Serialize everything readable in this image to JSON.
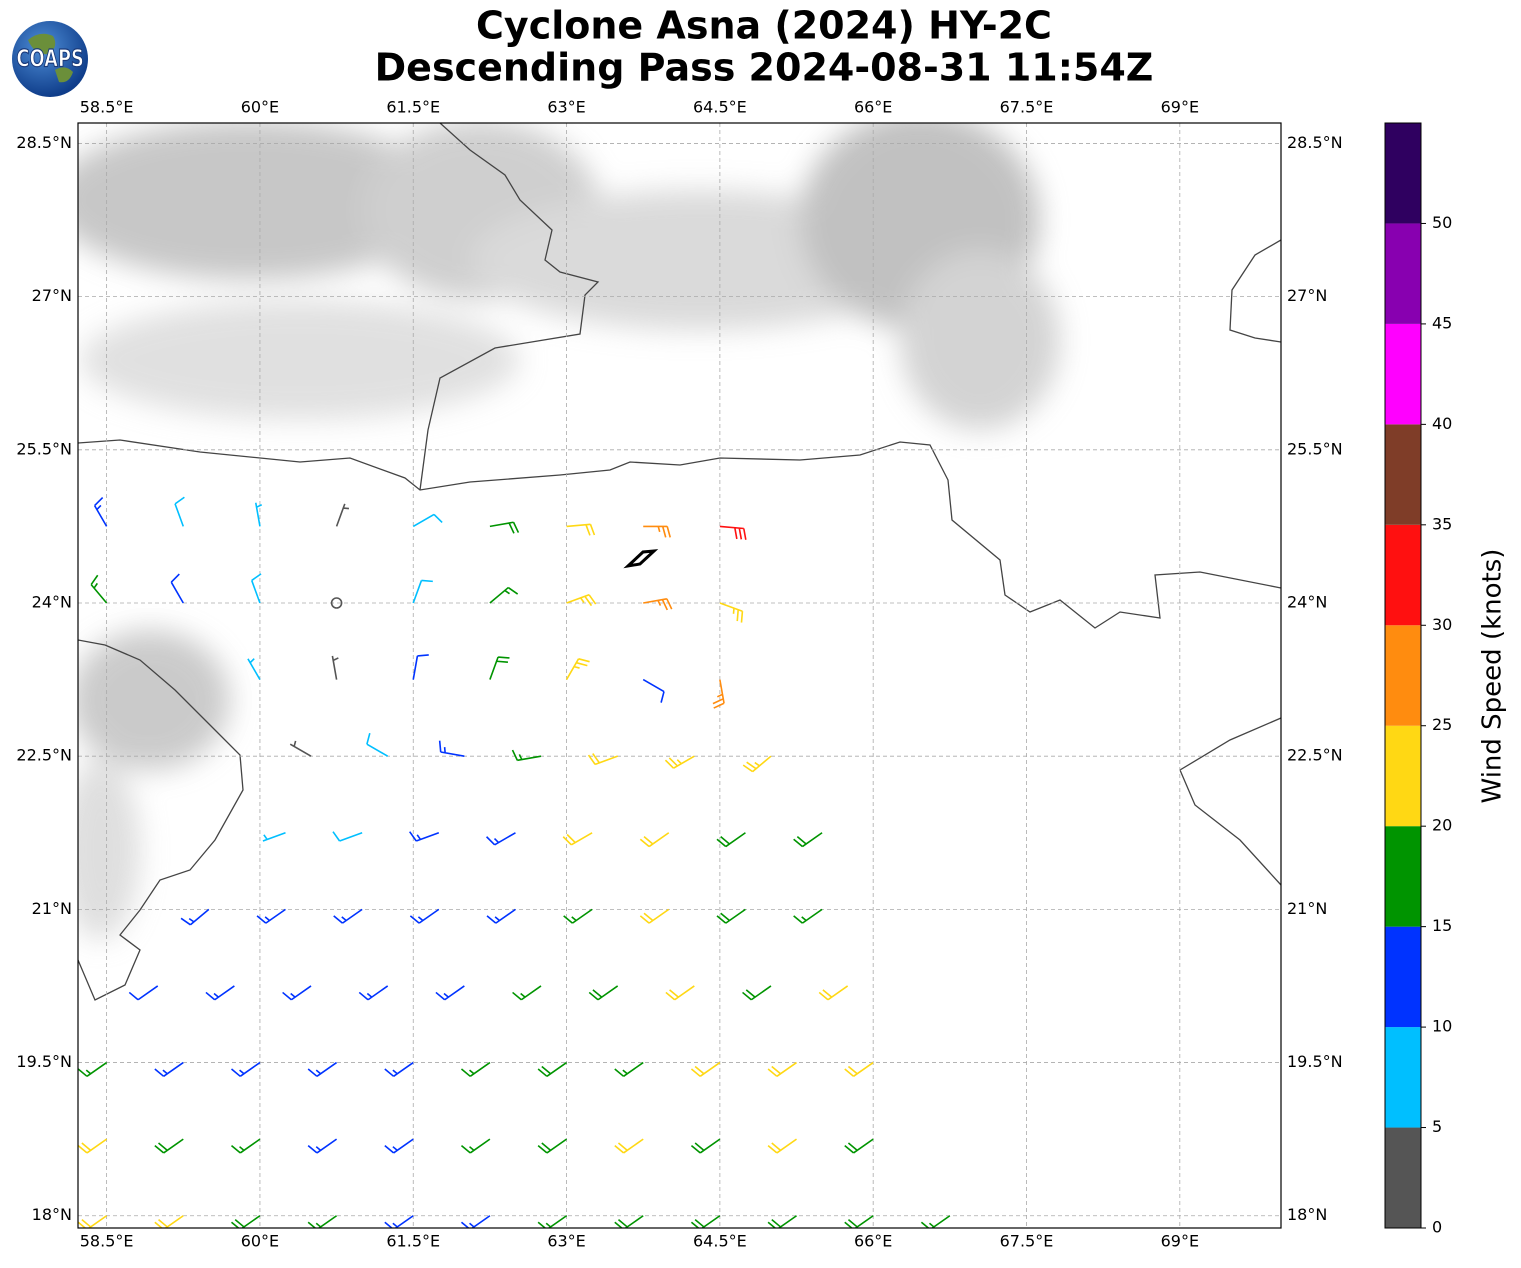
{
  "map": {
    "title": "Cyclone Asna (2024) HY-2C",
    "subtitle": "Descending Pass 2024-08-31 11:54Z",
    "logo": "COAPS",
    "xlim": [
      58.22,
      69.99
    ],
    "ylim": [
      17.88,
      28.7
    ],
    "xticks": [
      {
        "value": 58.5,
        "label": "58.5°E"
      },
      {
        "value": 60,
        "label": "60°E"
      },
      {
        "value": 61.5,
        "label": "61.5°E"
      },
      {
        "value": 63,
        "label": "63°E"
      },
      {
        "value": 64.5,
        "label": "64.5°E"
      },
      {
        "value": 66,
        "label": "66°E"
      },
      {
        "value": 67.5,
        "label": "67.5°E"
      },
      {
        "value": 69,
        "label": "69°E"
      }
    ],
    "yticks": [
      {
        "value": 18,
        "label": "18°N"
      },
      {
        "value": 19.5,
        "label": "19.5°N"
      },
      {
        "value": 21,
        "label": "21°N"
      },
      {
        "value": 22.5,
        "label": "22.5°N"
      },
      {
        "value": 24,
        "label": "24°N"
      },
      {
        "value": 25.5,
        "label": "25.5°N"
      },
      {
        "value": 27,
        "label": "27°N"
      },
      {
        "value": 28.5,
        "label": "28.5°N"
      }
    ],
    "grid": true,
    "barb_rows": [
      {
        "lat": 24.75,
        "lon": [
          58.5,
          59.25,
          60.0,
          60.75,
          61.5,
          62.25,
          63.0,
          63.75,
          64.5
        ],
        "speed": [
          13,
          8,
          7,
          3,
          8,
          19,
          22,
          27,
          31
        ],
        "dir": [
          330,
          340,
          350,
          20,
          60,
          80,
          85,
          90,
          95
        ]
      },
      {
        "lat": 24.0,
        "lon": [
          58.5,
          59.25,
          60.0,
          60.75,
          61.5,
          62.25,
          63.0,
          63.75,
          64.5
        ],
        "speed": [
          16,
          12,
          8,
          2,
          9,
          17,
          23,
          27,
          23
        ],
        "dir": [
          320,
          330,
          340,
          0,
          20,
          50,
          70,
          80,
          110
        ]
      },
      {
        "lat": 23.25,
        "lon": [
          60.0,
          60.75,
          61.5,
          62.25,
          63.0,
          63.75,
          64.5
        ],
        "speed": [
          6,
          3,
          12,
          19,
          24,
          12,
          27
        ],
        "dir": [
          330,
          350,
          10,
          20,
          30,
          120,
          170
        ]
      },
      {
        "lat": 22.5,
        "lon": [
          60.5,
          61.25,
          62.0,
          62.75,
          63.5,
          64.25,
          65.0
        ],
        "speed": [
          4,
          9,
          13,
          17,
          21,
          24,
          23
        ],
        "dir": [
          300,
          300,
          280,
          260,
          250,
          240,
          230
        ]
      },
      {
        "lat": 21.75,
        "lon": [
          60.25,
          61.0,
          61.75,
          62.5,
          63.25,
          64.0,
          64.75,
          65.5
        ],
        "speed": [
          5,
          8,
          13,
          14,
          20,
          22,
          18,
          18
        ],
        "dir": [
          250,
          250,
          250,
          240,
          240,
          235,
          235,
          235
        ]
      },
      {
        "lat": 21.0,
        "lon": [
          59.5,
          60.25,
          61.0,
          61.75,
          62.5,
          63.25,
          64.0,
          64.75,
          65.5
        ],
        "speed": [
          13,
          13,
          14,
          13,
          14,
          17,
          22,
          18,
          17
        ],
        "dir": [
          230,
          235,
          235,
          235,
          235,
          235,
          235,
          235,
          235
        ]
      },
      {
        "lat": 20.25,
        "lon": [
          59.0,
          59.75,
          60.5,
          61.25,
          62.0,
          62.75,
          63.5,
          64.25,
          65.0,
          65.75
        ],
        "speed": [
          12,
          13,
          14,
          14,
          13,
          17,
          18,
          22,
          19,
          22
        ],
        "dir": [
          235,
          235,
          235,
          235,
          235,
          235,
          235,
          235,
          235,
          235
        ]
      },
      {
        "lat": 19.5,
        "lon": [
          58.5,
          59.25,
          60.0,
          60.75,
          61.5,
          62.25,
          63.0,
          63.75,
          64.5,
          65.25,
          66.0
        ],
        "speed": [
          17,
          14,
          13,
          14,
          14,
          17,
          18,
          17,
          22,
          22,
          22
        ],
        "dir": [
          235,
          235,
          235,
          235,
          235,
          235,
          235,
          235,
          235,
          235,
          235
        ]
      },
      {
        "lat": 18.75,
        "lon": [
          58.5,
          59.25,
          60.0,
          60.75,
          61.5,
          62.25,
          63.0,
          63.75,
          64.5,
          65.25,
          66.0
        ],
        "speed": [
          22,
          18,
          17,
          14,
          14,
          17,
          18,
          22,
          18,
          22,
          18
        ],
        "dir": [
          235,
          235,
          235,
          235,
          235,
          235,
          235,
          235,
          235,
          235,
          235
        ]
      },
      {
        "lat": 18.0,
        "lon": [
          58.5,
          59.25,
          60.0,
          60.75,
          61.5,
          62.25,
          63.0,
          63.75,
          64.5,
          65.25,
          66.0,
          66.75
        ],
        "speed": [
          22,
          22,
          18,
          17,
          14,
          14,
          17,
          18,
          18,
          19,
          18,
          17
        ],
        "dir": [
          235,
          235,
          235,
          235,
          235,
          235,
          235,
          235,
          235,
          235,
          235,
          235
        ]
      }
    ],
    "colorbar": {
      "label": "Wind Speed (knots)",
      "bounds": [
        0,
        5,
        10,
        15,
        20,
        25,
        30,
        35,
        40,
        45,
        50,
        55
      ],
      "colors": [
        "#555555",
        "#00bfff",
        "#0033ff",
        "#009400",
        "#ffd814",
        "#ff8c0f",
        "#ff1010",
        "#7f3d28",
        "#ff00ff",
        "#8800b0",
        "#2f0060"
      ],
      "ticks": [
        0,
        5,
        10,
        15,
        20,
        25,
        30,
        35,
        40,
        45,
        50
      ]
    }
  }
}
